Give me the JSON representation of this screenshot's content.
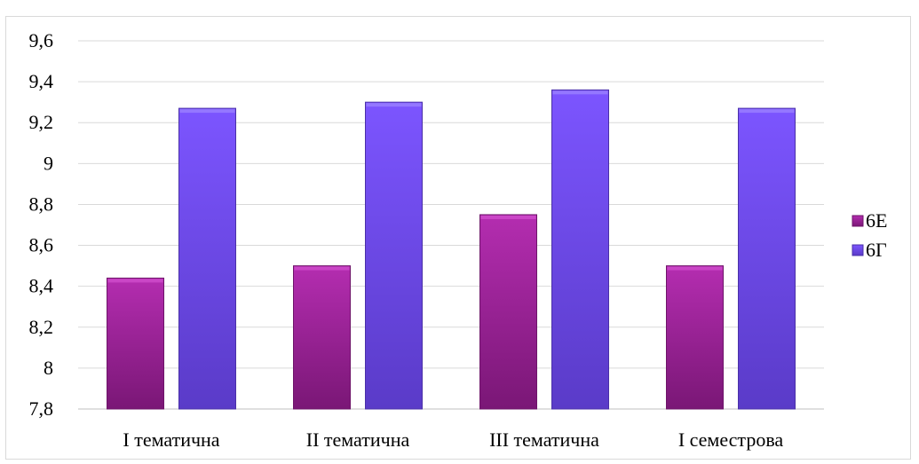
{
  "chart_data": {
    "type": "bar",
    "categories": [
      "І тематична",
      "ІІ тематична",
      "ІІІ тематична",
      "І семестрова"
    ],
    "series": [
      {
        "name": "6Е",
        "values": [
          8.44,
          8.5,
          8.75,
          8.5
        ],
        "color": "#9b1f96"
      },
      {
        "name": "6Г",
        "values": [
          9.27,
          9.3,
          9.36,
          9.27
        ],
        "color": "#6a45e8"
      }
    ],
    "ylim": [
      7.8,
      9.6
    ],
    "yticks": [
      "7,8",
      "8",
      "8,2",
      "8,4",
      "8,6",
      "8,8",
      "9",
      "9,2",
      "9,4",
      "9,6"
    ],
    "ytick_values": [
      7.8,
      8.0,
      8.2,
      8.4,
      8.6,
      8.8,
      9.0,
      9.2,
      9.4,
      9.6
    ],
    "grid": true,
    "legend_position": "right",
    "title": "",
    "xlabel": "",
    "ylabel": ""
  }
}
